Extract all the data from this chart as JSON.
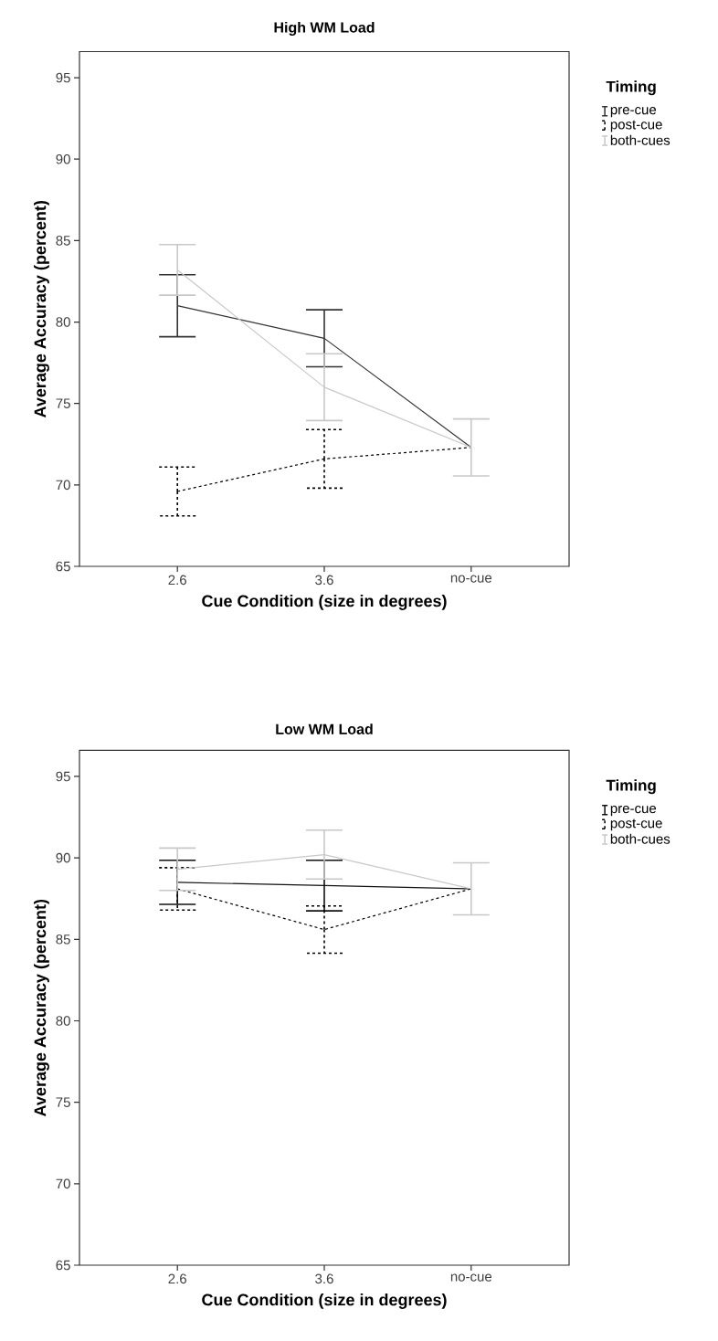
{
  "chart_data": [
    {
      "type": "line",
      "title": "High WM Load",
      "xlabel": "Cue Condition (size in degrees)",
      "ylabel": "Average Accuracy (percent)",
      "legend_title": "Timing",
      "legend": "right",
      "marker": "none",
      "categories": [
        "2.6",
        "3.6",
        "no-cue"
      ],
      "ylim": [
        65,
        96.6
      ],
      "yticks": [
        65,
        70,
        75,
        80,
        85,
        90,
        95
      ],
      "series": [
        {
          "name": "pre-cue",
          "color": "#333333",
          "line_style": "solid",
          "values": [
            81.0,
            79.0,
            72.3
          ],
          "errors": [
            1.9,
            1.75,
            null
          ]
        },
        {
          "name": "post-cue",
          "color": "#000000",
          "line_style": "dashed",
          "values": [
            69.6,
            71.6,
            72.3
          ],
          "errors": [
            1.5,
            1.8,
            null
          ]
        },
        {
          "name": "both-cues",
          "color": "#c8c8c8",
          "line_style": "solid",
          "values": [
            83.2,
            76.0,
            72.3
          ],
          "errors": [
            1.55,
            2.05,
            1.75
          ]
        }
      ]
    },
    {
      "type": "line",
      "title": "Low WM Load",
      "xlabel": "Cue Condition (size in degrees)",
      "ylabel": "Average Accuracy (percent)",
      "legend_title": "Timing",
      "legend": "right",
      "marker": "none",
      "categories": [
        "2.6",
        "3.6",
        "no-cue"
      ],
      "ylim": [
        65,
        96.6
      ],
      "yticks": [
        65,
        70,
        75,
        80,
        85,
        90,
        95
      ],
      "series": [
        {
          "name": "pre-cue",
          "color": "#111111",
          "line_style": "solid",
          "values": [
            88.5,
            88.3,
            88.1
          ],
          "errors": [
            1.35,
            1.55,
            null
          ]
        },
        {
          "name": "post-cue",
          "color": "#000000",
          "line_style": "dashed",
          "values": [
            88.1,
            85.6,
            88.1
          ],
          "errors": [
            1.3,
            1.45,
            null
          ]
        },
        {
          "name": "both-cues",
          "color": "#c8c8c8",
          "line_style": "solid",
          "values": [
            89.3,
            90.2,
            88.1
          ],
          "errors": [
            1.3,
            1.5,
            1.6
          ]
        }
      ]
    }
  ]
}
